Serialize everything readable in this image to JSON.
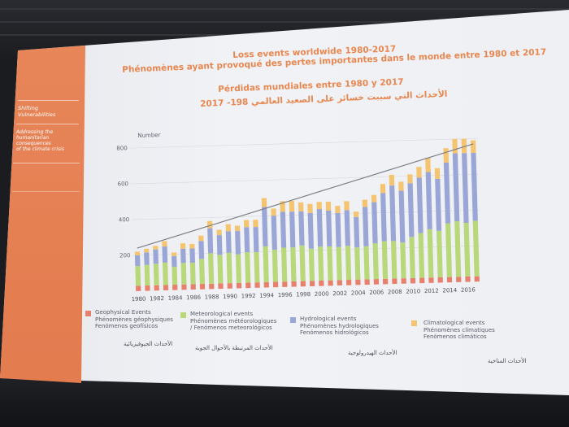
{
  "sidebar": {
    "section_title_1": "Shifting",
    "section_title_2": "Vulnerabilities",
    "subtitle_lines": [
      "Addressing the",
      "humanitarian",
      "consequences",
      "of the climate crisis"
    ]
  },
  "titles": {
    "en": "Loss events worldwide 1980-2017",
    "fr": "Phénomènes ayant provoqué des pertes importantes dans le monde entre 1980 et 2017",
    "es": "Pérdidas mundiales entre 1980 y 2017",
    "ar": "الأحداث التي سببت خسائر على الصعيد العالمي 198- 2017"
  },
  "colors": {
    "geophysical": "#e8806e",
    "meteorological": "#b9d87a",
    "hydrological": "#9aa6d6",
    "climatological": "#f4c470",
    "trend": "#7d7f86",
    "title_orange": "#e8874f"
  },
  "legend": [
    {
      "key": "geophysical",
      "lines": [
        "Geophysical Events",
        "Phénomènes géophysiques",
        "Fenómenos geofísicos"
      ],
      "arabic": "الأحداث الجيوفيزيائية"
    },
    {
      "key": "meteorological",
      "lines": [
        "Meteorological events",
        "Phénomènes météorologiques",
        "/ Fenómenos meteorológicos"
      ],
      "arabic": "الأحداث المرتبطة بالأحوال الجوية"
    },
    {
      "key": "hydrological",
      "lines": [
        "Hydrological events",
        "Phénomènes hydrologiques",
        "Fenómenos hidrológicos"
      ],
      "arabic": "الأحداث الهيدرولوجية"
    },
    {
      "key": "climatological",
      "lines": [
        "Climatological events",
        "Phénomènes climatiques",
        "Fenómenos climáticos"
      ],
      "arabic": "الأحداث المناخية"
    }
  ],
  "chart_data": {
    "type": "bar",
    "stacked": true,
    "ylabel": "Number",
    "ylim": [
      0,
      850
    ],
    "yticks": [
      200,
      400,
      600,
      800
    ],
    "x": [
      1980,
      1981,
      1982,
      1983,
      1984,
      1985,
      1986,
      1987,
      1988,
      1989,
      1990,
      1991,
      1992,
      1993,
      1994,
      1995,
      1996,
      1997,
      1998,
      1999,
      2000,
      2001,
      2002,
      2003,
      2004,
      2005,
      2006,
      2007,
      2008,
      2009,
      2010,
      2011,
      2012,
      2013,
      2014,
      2015,
      2016,
      2017
    ],
    "xtick_labels": [
      "1980",
      "1982",
      "1984",
      "1986",
      "1988",
      "1990",
      "1992",
      "1994",
      "1996",
      "1998",
      "2000",
      "2002",
      "2004",
      "2006",
      "2008",
      "2010",
      "2012",
      "2014",
      "2016"
    ],
    "series": [
      {
        "name": "Geophysical Events",
        "color": "#e8806e",
        "values": [
          30,
          30,
          30,
          30,
          30,
          30,
          30,
          30,
          30,
          30,
          30,
          30,
          30,
          30,
          30,
          30,
          30,
          30,
          30,
          30,
          30,
          30,
          30,
          30,
          30,
          30,
          30,
          30,
          30,
          30,
          30,
          30,
          30,
          30,
          30,
          30,
          30,
          30
        ]
      },
      {
        "name": "Meteorological events",
        "color": "#b9d87a",
        "values": [
          110,
          115,
          120,
          125,
          100,
          120,
          120,
          140,
          170,
          160,
          170,
          160,
          170,
          170,
          200,
          180,
          190,
          190,
          200,
          180,
          190,
          190,
          185,
          190,
          180,
          185,
          200,
          210,
          210,
          200,
          230,
          250,
          270,
          260,
          300,
          310,
          300,
          310
        ]
      },
      {
        "name": "Hydrological events",
        "color": "#9aa6d6",
        "values": [
          60,
          70,
          80,
          90,
          60,
          80,
          80,
          100,
          140,
          110,
          120,
          130,
          140,
          140,
          220,
          190,
          200,
          200,
          190,
          200,
          210,
          200,
          190,
          200,
          170,
          220,
          230,
          270,
          310,
          290,
          300,
          310,
          320,
          290,
          340,
          380,
          390,
          380
        ]
      },
      {
        "name": "Climatological events",
        "color": "#f4c470",
        "values": [
          20,
          20,
          20,
          30,
          20,
          30,
          25,
          30,
          40,
          30,
          40,
          30,
          40,
          40,
          50,
          40,
          60,
          60,
          50,
          50,
          40,
          50,
          40,
          50,
          30,
          40,
          40,
          50,
          60,
          50,
          50,
          60,
          80,
          60,
          80,
          80,
          80,
          70
        ]
      }
    ]
  }
}
